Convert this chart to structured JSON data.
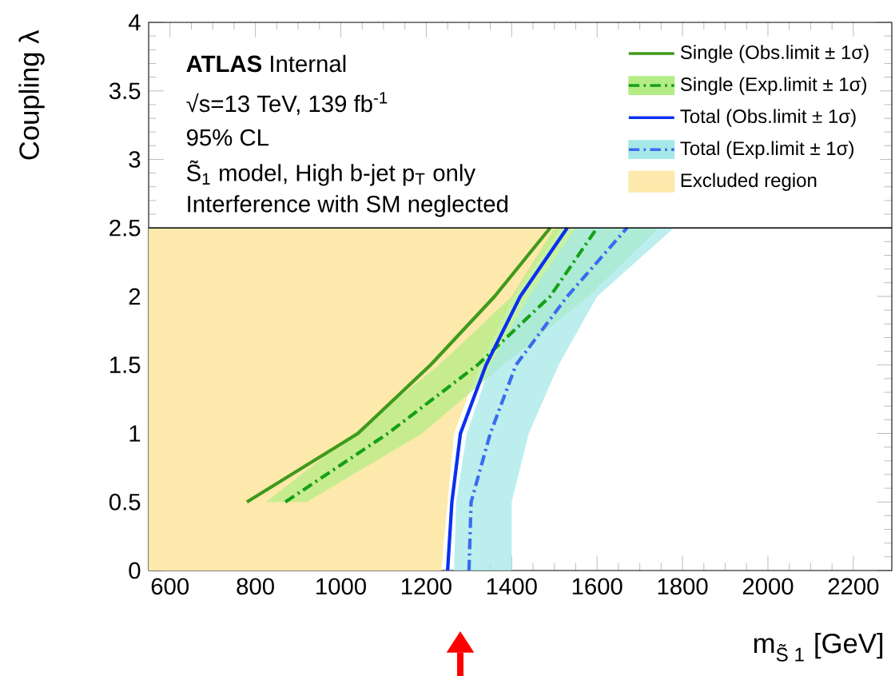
{
  "chart_data": {
    "type": "line",
    "xlabel": "m$_{S̃ 1}$ [GeV]",
    "ylabel": "Coupling λ",
    "xlim": [
      550,
      2290
    ],
    "ylim": [
      0,
      4
    ],
    "xticks": [
      600,
      800,
      1000,
      1200,
      1400,
      1600,
      1800,
      2000,
      2200
    ],
    "yticks": [
      0,
      0.5,
      1,
      1.5,
      2,
      2.5,
      3,
      3.5,
      4
    ],
    "legend": "top right",
    "annotations": [
      "**ATLAS** Internal",
      "√s=13 TeV, 139 fb$^{-1}$",
      "95% CL",
      "S̃$_{1}$ model, High b-jet p$_{T}$ only",
      "Interference with SM neglected"
    ],
    "ref_lines": [
      {
        "axis": "y",
        "value": 2.5
      }
    ],
    "series": [
      {
        "name": "Excluded region",
        "type": "area",
        "color": "#fde9ab",
        "x": [
          550,
          550,
          1515,
          1405,
          1325,
          1265,
          1235
        ],
        "values": [
          0,
          2.5,
          2.5,
          2.0,
          1.5,
          1.0,
          0
        ]
      },
      {
        "type": "area",
        "color": "#b4ec86",
        "x": [
          825,
          1030,
          1230,
          1400,
          1500,
          1745,
          1580,
          1380,
          1190,
          920
        ],
        "values": [
          0.5,
          1.0,
          1.5,
          2.0,
          2.5,
          2.5,
          2.0,
          1.5,
          1.0,
          0.5
        ]
      },
      {
        "type": "area",
        "color": "#a6e8e8",
        "x": [
          1265,
          1270,
          1295,
          1350,
          1440,
          1550,
          1780,
          1600,
          1510,
          1440,
          1400,
          1400
        ],
        "values": [
          0,
          0.5,
          1.0,
          1.5,
          2.0,
          2.5,
          2.5,
          2.0,
          1.5,
          1.0,
          0.5,
          0
        ]
      },
      {
        "name": "Single (Obs.limit ± 1σ)",
        "color": "#3f9a1c",
        "line_style": "solid",
        "x": [
          780,
          1040,
          1210,
          1360,
          1490
        ],
        "values": [
          0.5,
          1.0,
          1.5,
          2.0,
          2.5
        ]
      },
      {
        "name": "Single (Exp.limit ± 1σ)",
        "color": "#16a016",
        "line_style": "dashdot",
        "x": [
          870,
          1110,
          1320,
          1490,
          1600
        ],
        "values": [
          0.5,
          1.0,
          1.5,
          2.0,
          2.5
        ]
      },
      {
        "name": "Total (Obs.limit ± 1σ)",
        "color": "#0a30f0",
        "line_style": "solid",
        "x": [
          1250,
          1260,
          1280,
          1310,
          1340,
          1420,
          1530
        ],
        "values": [
          0,
          0.5,
          1.0,
          1.25,
          1.5,
          2.0,
          2.5
        ]
      },
      {
        "name": "Total (Exp.limit ± 1σ)",
        "color": "#3a6cf0",
        "line_style": "dashdot",
        "x": [
          1300,
          1305,
          1350,
          1410,
          1530,
          1670
        ],
        "values": [
          0,
          0.5,
          1.0,
          1.5,
          2.0,
          2.5
        ]
      }
    ]
  }
}
